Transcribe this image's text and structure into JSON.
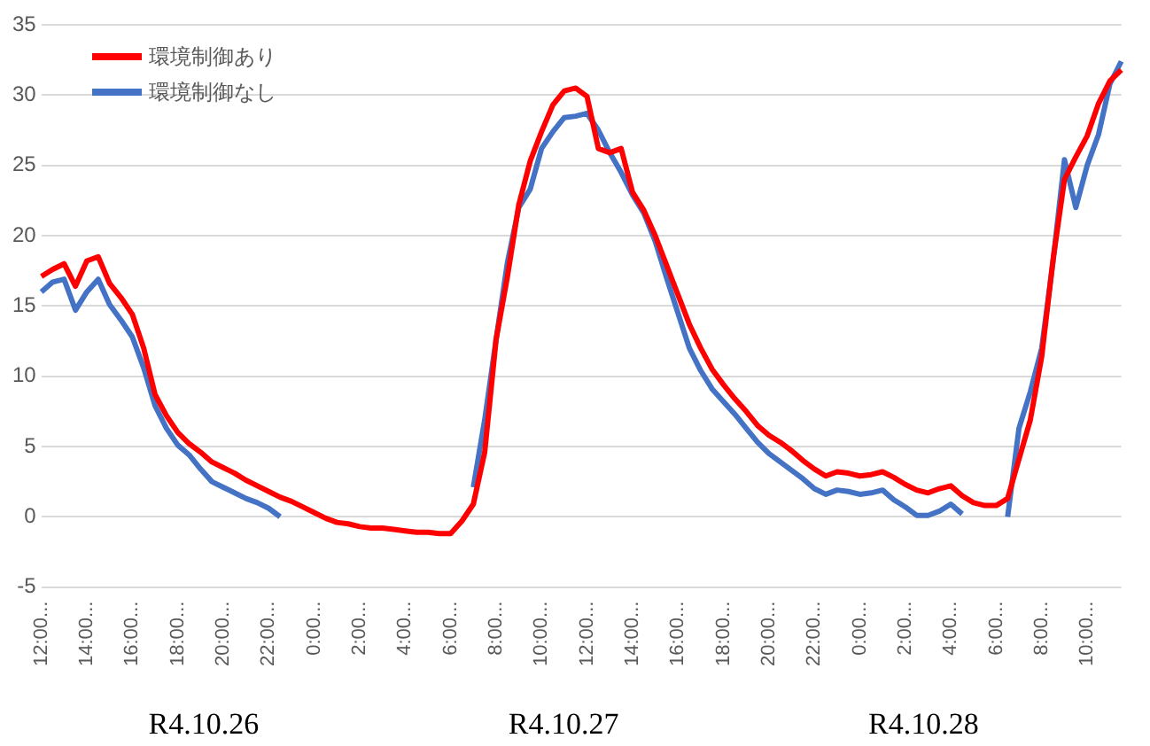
{
  "chart_data": {
    "type": "line",
    "legend": "top left",
    "grid": "y",
    "marker": "none",
    "line_style": "solid",
    "ylim": [
      -5,
      35
    ],
    "yticks": [
      -5,
      0,
      5,
      10,
      15,
      20,
      25,
      30,
      35
    ],
    "categories": [
      "12:00...",
      null,
      null,
      null,
      "14:00...",
      null,
      null,
      null,
      "16:00...",
      null,
      null,
      null,
      "18:00...",
      null,
      null,
      null,
      "20:00...",
      null,
      null,
      null,
      "22:00...",
      null,
      null,
      null,
      "0:00...",
      null,
      null,
      null,
      "2:00...",
      null,
      null,
      null,
      "4:00...",
      null,
      null,
      null,
      "6:00...",
      null,
      null,
      null,
      "8:00...",
      null,
      null,
      null,
      "10:00...",
      null,
      null,
      null,
      "12:00...",
      null,
      null,
      null,
      "14:00...",
      null,
      null,
      null,
      "16:00...",
      null,
      null,
      null,
      "18:00...",
      null,
      null,
      null,
      "20:00...",
      null,
      null,
      null,
      "22:00...",
      null,
      null,
      null,
      "0:00...",
      null,
      null,
      null,
      "2:00...",
      null,
      null,
      null,
      "4:00...",
      null,
      null,
      null,
      "6:00...",
      null,
      null,
      null,
      "8:00...",
      null,
      null,
      null,
      "10:00...",
      null,
      null,
      null
    ],
    "annotations": [
      "R4.10.26",
      "R4.10.27",
      "R4.10.28"
    ],
    "series": [
      {
        "name": "環境制御あり",
        "color": "#ff0000",
        "values": [
          17.1,
          17.6,
          18.0,
          16.4,
          18.2,
          18.5,
          16.6,
          15.6,
          14.4,
          12.0,
          8.7,
          7.2,
          6.0,
          5.2,
          4.6,
          3.9,
          3.5,
          3.1,
          2.6,
          2.2,
          1.8,
          1.4,
          1.1,
          0.7,
          0.3,
          -0.1,
          -0.4,
          -0.5,
          -0.7,
          -0.8,
          -0.8,
          -0.9,
          -1.0,
          -1.1,
          -1.1,
          -1.2,
          -1.2,
          -0.3,
          0.9,
          4.6,
          12.6,
          17.1,
          22.2,
          25.3,
          27.4,
          29.3,
          30.3,
          30.5,
          29.9,
          26.2,
          25.9,
          26.2,
          23.1,
          21.8,
          20.0,
          17.9,
          15.8,
          13.7,
          12.0,
          10.5,
          9.4,
          8.4,
          7.5,
          6.5,
          5.8,
          5.3,
          4.7,
          4.0,
          3.4,
          2.9,
          3.2,
          3.1,
          2.9,
          3.0,
          3.2,
          2.8,
          2.3,
          1.9,
          1.7,
          2.0,
          2.2,
          1.5,
          1.0,
          0.8,
          0.8,
          1.3,
          4.1,
          6.9,
          11.4,
          18.3,
          24.0,
          25.6,
          27.1,
          29.4,
          31.0,
          31.8
        ]
      },
      {
        "name": "環境制御なし",
        "color": "#4472c4",
        "values": [
          16.0,
          16.7,
          16.9,
          14.7,
          16.0,
          16.9,
          15.1,
          14.0,
          12.8,
          10.6,
          7.9,
          6.3,
          5.1,
          4.4,
          3.4,
          2.5,
          2.1,
          1.7,
          1.3,
          1.0,
          0.6,
          0,
          null,
          null,
          null,
          null,
          null,
          null,
          null,
          null,
          null,
          null,
          null,
          null,
          null,
          null,
          null,
          null,
          2.1,
          6.9,
          12.6,
          18.1,
          22.0,
          23.3,
          26.2,
          27.4,
          28.4,
          28.5,
          28.7,
          27.5,
          25.9,
          24.5,
          22.9,
          21.6,
          19.6,
          17.0,
          14.5,
          12.0,
          10.4,
          9.1,
          8.2,
          7.3,
          6.3,
          5.3,
          4.5,
          3.9,
          3.3,
          2.7,
          2.0,
          1.6,
          1.9,
          1.8,
          1.6,
          1.7,
          1.9,
          1.2,
          0.7,
          0.1,
          0.1,
          0.4,
          0.9,
          0.2,
          null,
          null,
          null,
          0,
          6.3,
          8.9,
          12.0,
          18.2,
          25.4,
          22.0,
          25.0,
          27.2,
          30.8,
          32.4
        ]
      }
    ]
  }
}
